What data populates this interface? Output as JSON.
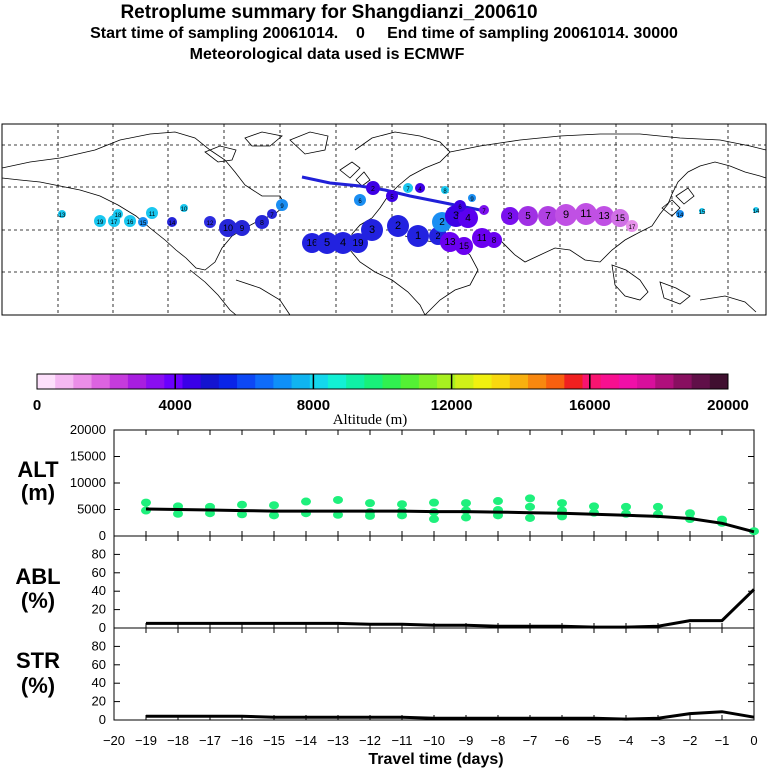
{
  "header": {
    "title": "Retroplume summary for Shangdianzi_200610",
    "sampling": "Start time of sampling 20061014.    0     End time of sampling 20061014. 30000",
    "met": "Meteorological data used is ECMWF"
  },
  "colorbar": {
    "label": "Altitude  (m)",
    "ticks": [
      "0",
      "4000",
      "8000",
      "12000",
      "16000",
      "20000"
    ],
    "colors": [
      "#fde0fb",
      "#f5b8f2",
      "#eb8ee8",
      "#dc63e0",
      "#c53bdc",
      "#a81ee0",
      "#8a0ef0",
      "#6a00ff",
      "#3a00e8",
      "#1414d0",
      "#0a24e8",
      "#0d48f5",
      "#0f6cfa",
      "#0f90f8",
      "#10b4f0",
      "#14d8ec",
      "#12f0d4",
      "#10f0a6",
      "#18f07a",
      "#30f050",
      "#54f034",
      "#80f028",
      "#a8f020",
      "#d0f018",
      "#f0f010",
      "#f8d810",
      "#f8b010",
      "#f88810",
      "#f86010",
      "#f02020",
      "#f81470",
      "#f81090",
      "#f010a8",
      "#d8109c",
      "#b0107c",
      "#881060",
      "#601048",
      "#401030"
    ]
  },
  "map": {
    "point_labels": [
      "1",
      "2",
      "3",
      "4",
      "5",
      "6",
      "7",
      "8",
      "9",
      "10",
      "11",
      "12",
      "13",
      "14",
      "15",
      "16",
      "17",
      "18",
      "19"
    ]
  },
  "panels": {
    "alt_label": [
      "ALT",
      "(m)"
    ],
    "abl_label": [
      "ABL",
      "(%)"
    ],
    "str_label": [
      "STR",
      "(%)"
    ],
    "xlabel": "Travel time (days)"
  },
  "chart_data": [
    {
      "type": "line",
      "title": "ALT",
      "ylabel": "(m)",
      "ylim": [
        0,
        20000
      ],
      "yticks": [
        0,
        5000,
        10000,
        15000,
        20000
      ],
      "x": [
        -19,
        -18,
        -17,
        -16,
        -15,
        -14,
        -13,
        -12,
        -11,
        -10,
        -9,
        -8,
        -7,
        -6,
        -5,
        -4,
        -3,
        -2,
        -1,
        0
      ],
      "series": [
        {
          "name": "median altitude",
          "values": [
            5100,
            5000,
            4900,
            4800,
            4700,
            4700,
            4700,
            4700,
            4700,
            4600,
            4600,
            4500,
            4400,
            4300,
            4100,
            3900,
            3700,
            3300,
            2400,
            800
          ]
        }
      ],
      "scatter": {
        "color": "#1ef07c",
        "points": [
          [
            -19,
            6300
          ],
          [
            -19,
            4800
          ],
          [
            -18,
            5600
          ],
          [
            -18,
            4200
          ],
          [
            -17,
            5500
          ],
          [
            -17,
            4300
          ],
          [
            -16,
            5900
          ],
          [
            -16,
            4100
          ],
          [
            -15,
            5800
          ],
          [
            -15,
            3900
          ],
          [
            -14,
            6500
          ],
          [
            -14,
            4300
          ],
          [
            -13,
            6800
          ],
          [
            -13,
            4000
          ],
          [
            -12,
            6200
          ],
          [
            -12,
            4500
          ],
          [
            -12,
            3800
          ],
          [
            -11,
            6000
          ],
          [
            -11,
            4700
          ],
          [
            -11,
            3900
          ],
          [
            -10,
            6300
          ],
          [
            -10,
            4500
          ],
          [
            -10,
            3200
          ],
          [
            -9,
            6200
          ],
          [
            -9,
            4800
          ],
          [
            -9,
            3500
          ],
          [
            -8,
            6600
          ],
          [
            -8,
            4900
          ],
          [
            -8,
            3900
          ],
          [
            -7,
            7100
          ],
          [
            -7,
            5500
          ],
          [
            -7,
            3400
          ],
          [
            -6,
            6200
          ],
          [
            -6,
            4800
          ],
          [
            -6,
            3700
          ],
          [
            -5,
            5600
          ],
          [
            -5,
            4400
          ],
          [
            -4,
            5500
          ],
          [
            -4,
            4200
          ],
          [
            -3,
            5500
          ],
          [
            -3,
            4100
          ],
          [
            -2,
            4300
          ],
          [
            -2,
            3200
          ],
          [
            -1,
            3100
          ],
          [
            -1,
            2500
          ],
          [
            0,
            900
          ]
        ]
      }
    },
    {
      "type": "line",
      "title": "ABL",
      "ylabel": "(%)",
      "ylim": [
        0,
        100
      ],
      "yticks": [
        0,
        20,
        40,
        60,
        80
      ],
      "x": [
        -19,
        -18,
        -17,
        -16,
        -15,
        -14,
        -13,
        -12,
        -11,
        -10,
        -9,
        -8,
        -7,
        -6,
        -5,
        -4,
        -3,
        -2,
        -1,
        0
      ],
      "series": [
        {
          "name": "ABL fraction",
          "values": [
            5,
            5,
            5,
            5,
            5,
            5,
            5,
            4,
            4,
            3,
            3,
            2,
            2,
            2,
            1,
            1,
            2,
            8,
            8,
            42
          ]
        }
      ]
    },
    {
      "type": "line",
      "title": "STR",
      "ylabel": "(%)",
      "ylim": [
        0,
        100
      ],
      "yticks": [
        0,
        20,
        40,
        60,
        80
      ],
      "xlabel": "Travel time (days)",
      "xlim": [
        -20,
        0
      ],
      "xticks": [
        -20,
        -19,
        -18,
        -17,
        -16,
        -15,
        -14,
        -13,
        -12,
        -11,
        -10,
        -9,
        -8,
        -7,
        -6,
        -5,
        -4,
        -3,
        -2,
        -1,
        0
      ],
      "x": [
        -19,
        -18,
        -17,
        -16,
        -15,
        -14,
        -13,
        -12,
        -11,
        -10,
        -9,
        -8,
        -7,
        -6,
        -5,
        -4,
        -3,
        -2,
        -1,
        0
      ],
      "series": [
        {
          "name": "stratospheric fraction",
          "values": [
            4,
            4,
            4,
            4,
            3,
            3,
            3,
            3,
            3,
            2,
            2,
            2,
            2,
            2,
            2,
            1,
            2,
            7,
            9,
            3
          ]
        }
      ]
    }
  ]
}
